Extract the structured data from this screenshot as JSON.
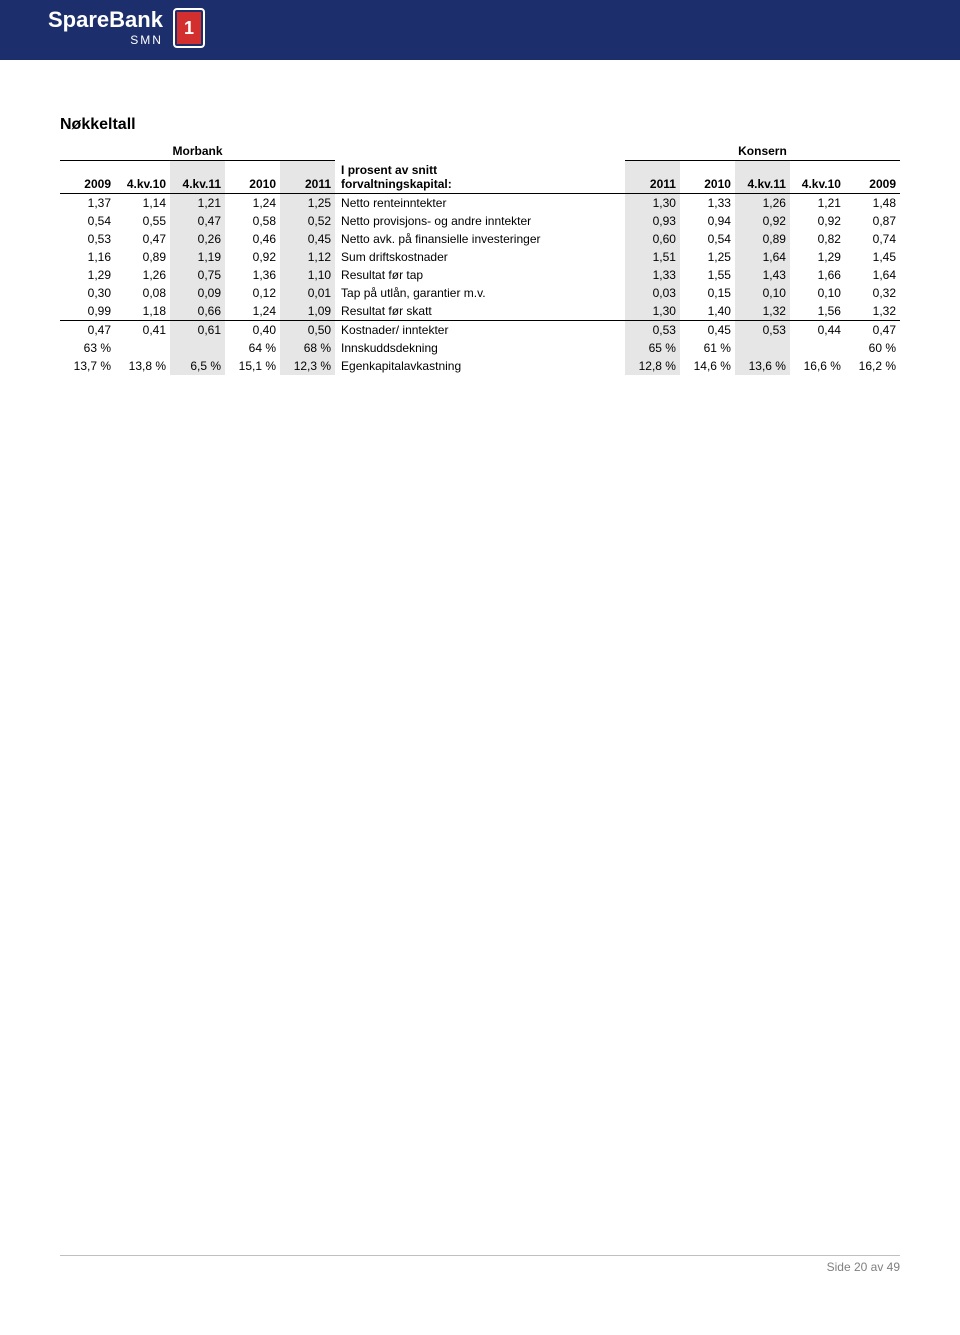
{
  "brand": {
    "name": "SpareBank",
    "sub": "SMN",
    "badge": "1"
  },
  "title": "Nøkkeltall",
  "table": {
    "group_left": "Morbank",
    "group_right": "Konsern",
    "label_header_line1": "I prosent av snitt",
    "label_header_line2": "forvaltningskapital:",
    "left_headers": [
      "2009",
      "4.kv.10",
      "4.kv.11",
      "2010",
      "2011"
    ],
    "right_headers": [
      "2011",
      "2010",
      "4.kv.11",
      "4.kv.10",
      "2009"
    ],
    "shaded_left_idx": [
      2,
      4
    ],
    "shaded_right_idx": [
      0,
      2
    ],
    "rows": [
      {
        "label": "Netto renteinntekter",
        "left": [
          "1,37",
          "1,14",
          "1,21",
          "1,24",
          "1,25"
        ],
        "right": [
          "1,30",
          "1,33",
          "1,26",
          "1,21",
          "1,48"
        ],
        "border": false
      },
      {
        "label": "Netto provisjons- og andre inntekter",
        "left": [
          "0,54",
          "0,55",
          "0,47",
          "0,58",
          "0,52"
        ],
        "right": [
          "0,93",
          "0,94",
          "0,92",
          "0,92",
          "0,87"
        ],
        "border": false
      },
      {
        "label": "Netto avk. på finansielle investeringer",
        "left": [
          "0,53",
          "0,47",
          "0,26",
          "0,46",
          "0,45"
        ],
        "right": [
          "0,60",
          "0,54",
          "0,89",
          "0,82",
          "0,74"
        ],
        "border": false
      },
      {
        "label": "Sum driftskostnader",
        "left": [
          "1,16",
          "0,89",
          "1,19",
          "0,92",
          "1,12"
        ],
        "right": [
          "1,51",
          "1,25",
          "1,64",
          "1,29",
          "1,45"
        ],
        "border": false
      },
      {
        "label": "Resultat før tap",
        "left": [
          "1,29",
          "1,26",
          "0,75",
          "1,36",
          "1,10"
        ],
        "right": [
          "1,33",
          "1,55",
          "1,43",
          "1,66",
          "1,64"
        ],
        "border": false
      },
      {
        "label": "Tap på utlån, garantier m.v.",
        "left": [
          "0,30",
          "0,08",
          "0,09",
          "0,12",
          "0,01"
        ],
        "right": [
          "0,03",
          "0,15",
          "0,10",
          "0,10",
          "0,32"
        ],
        "border": false
      },
      {
        "label": "Resultat før skatt",
        "left": [
          "0,99",
          "1,18",
          "0,66",
          "1,24",
          "1,09"
        ],
        "right": [
          "1,30",
          "1,40",
          "1,32",
          "1,56",
          "1,32"
        ],
        "border": true
      },
      {
        "label": "Kostnader/ inntekter",
        "left": [
          "0,47",
          "0,41",
          "0,61",
          "0,40",
          "0,50"
        ],
        "right": [
          "0,53",
          "0,45",
          "0,53",
          "0,44",
          "0,47"
        ],
        "border": false
      },
      {
        "label": "Innskuddsdekning",
        "left": [
          "63 %",
          "",
          "",
          "64 %",
          "68 %"
        ],
        "right": [
          "65 %",
          "61 %",
          "",
          "",
          "60 %"
        ],
        "border": false
      },
      {
        "label": "Egenkapitalavkastning",
        "left": [
          "13,7 %",
          "13,8 %",
          "6,5 %",
          "15,1 %",
          "12,3 %"
        ],
        "right": [
          "12,8 %",
          "14,6 %",
          "13,6 %",
          "16,6 %",
          "16,2 %"
        ],
        "border": false
      }
    ]
  },
  "footer": "Side 20 av 49"
}
